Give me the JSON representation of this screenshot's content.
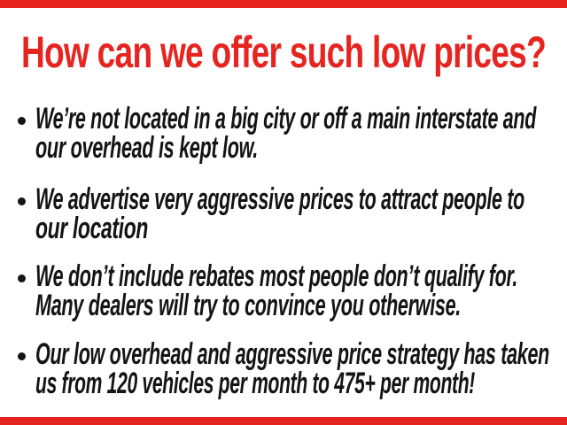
{
  "slide": {
    "title": "How can we offer such low prices?",
    "bullets": [
      {
        "lines": [
          "We’re not located in a big city or off a main interstate and",
          "our overhead is kept low."
        ]
      },
      {
        "lines": [
          "We advertise very aggressive prices to attract people to",
          "our location"
        ]
      },
      {
        "lines": [
          "We don’t include rebates most people don’t qualify for.",
          "Many dealers will try to convince you otherwise."
        ]
      },
      {
        "lines": [
          "Our low overhead and aggressive price strategy has taken",
          "us from 120 vehicles per month to 475+ per month!"
        ]
      }
    ],
    "colors": {
      "accent_red": "#e62420",
      "text_black": "#141414",
      "background": "#ffffff"
    }
  }
}
